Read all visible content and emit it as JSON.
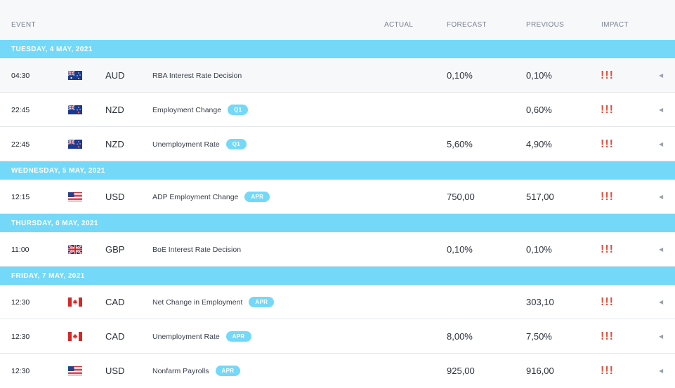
{
  "columns": {
    "event": "EVENT",
    "actual": "ACTUAL",
    "forecast": "FORECAST",
    "previous": "PREVIOUS",
    "impact": "IMPACT"
  },
  "days": [
    {
      "label": "TUESDAY, 4 MAY, 2021",
      "events": [
        {
          "time": "04:30",
          "flag": "flag-australia-icon",
          "currency": "AUD",
          "name": "RBA Interest Rate Decision",
          "period": "",
          "actual": "",
          "forecast": "0,10%",
          "previous": "0,10%",
          "impact": "!!!",
          "highlight": true
        },
        {
          "time": "22:45",
          "flag": "flag-new-zealand-icon",
          "currency": "NZD",
          "name": "Employment Change",
          "period": "Q1",
          "actual": "",
          "forecast": "",
          "previous": "0,60%",
          "impact": "!!!",
          "highlight": false
        },
        {
          "time": "22:45",
          "flag": "flag-new-zealand-icon",
          "currency": "NZD",
          "name": "Unemployment Rate",
          "period": "Q1",
          "actual": "",
          "forecast": "5,60%",
          "previous": "4,90%",
          "impact": "!!!",
          "highlight": false
        }
      ]
    },
    {
      "label": "WEDNESDAY, 5 MAY, 2021",
      "events": [
        {
          "time": "12:15",
          "flag": "flag-usa-icon",
          "currency": "USD",
          "name": "ADP Employment Change",
          "period": "APR",
          "actual": "",
          "forecast": "750,00",
          "previous": "517,00",
          "impact": "!!!",
          "highlight": false
        }
      ]
    },
    {
      "label": "THURSDAY, 6 MAY, 2021",
      "events": [
        {
          "time": "11:00",
          "flag": "flag-uk-icon",
          "currency": "GBP",
          "name": "BoE Interest Rate Decision",
          "period": "",
          "actual": "",
          "forecast": "0,10%",
          "previous": "0,10%",
          "impact": "!!!",
          "highlight": false
        }
      ]
    },
    {
      "label": "FRIDAY, 7 MAY, 2021",
      "events": [
        {
          "time": "12:30",
          "flag": "flag-canada-icon",
          "currency": "CAD",
          "name": "Net Change in Employment",
          "period": "APR",
          "actual": "",
          "forecast": "",
          "previous": "303,10",
          "impact": "!!!",
          "highlight": false
        },
        {
          "time": "12:30",
          "flag": "flag-canada-icon",
          "currency": "CAD",
          "name": "Unemployment Rate",
          "period": "APR",
          "actual": "",
          "forecast": "8,00%",
          "previous": "7,50%",
          "impact": "!!!",
          "highlight": false
        },
        {
          "time": "12:30",
          "flag": "flag-usa-icon",
          "currency": "USD",
          "name": "Nonfarm Payrolls",
          "period": "APR",
          "actual": "",
          "forecast": "925,00",
          "previous": "916,00",
          "impact": "!!!",
          "highlight": false
        }
      ]
    }
  ],
  "colors": {
    "accent": "#74d8f8",
    "impact_high": "#e2503f",
    "header_bg": "#f7f8fa"
  }
}
